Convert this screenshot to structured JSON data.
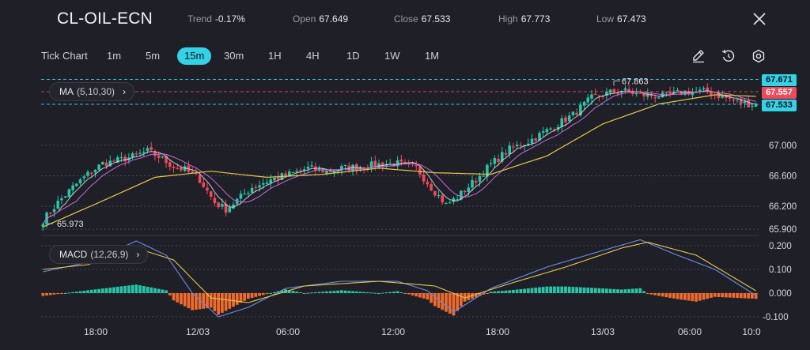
{
  "header": {
    "symbol": "CL-OIL-ECN",
    "trend_label": "Trend",
    "trend_value": "-0.17%",
    "open_label": "Open",
    "open_value": "67.649",
    "close_label": "Close",
    "close_value": "67.533",
    "high_label": "High",
    "high_value": "67.773",
    "low_label": "Low",
    "low_value": "67.473",
    "close_icon": "close-icon"
  },
  "timeframes": {
    "items": [
      "Tick Chart",
      "1m",
      "5m",
      "15m",
      "30m",
      "1H",
      "4H",
      "1D",
      "1W",
      "1M"
    ],
    "active": "15m"
  },
  "tools": [
    "pencil-icon",
    "reset-icon",
    "settings-icon"
  ],
  "indicators": {
    "ma_name": "MA",
    "ma_params": "(5,10,30)",
    "macd_name": "MACD",
    "macd_params": "(12,26,9)"
  },
  "price_tags": {
    "tag1": "67.671",
    "tag2": "67.557",
    "tag3": "67.533"
  },
  "annotations": {
    "high_marker": "67.863",
    "low_marker": "65.973"
  },
  "colors": {
    "background": "#1f1f27",
    "up": "#26c6a6",
    "down": "#ef4a5c",
    "accent": "#33d2e6",
    "ma_fast": "#e0e0e8",
    "ma_mid": "#c56bd8",
    "ma_slow": "#e6c84a",
    "macd_line": "#6a8de8",
    "signal_line": "#e6c84a",
    "hist_pos": "#26c6a6",
    "hist_neg": "#f06a2c"
  },
  "chart_data": [
    {
      "type": "candlestick",
      "y_ticks": [
        "67.000",
        "66.600",
        "66.200",
        "65.900"
      ],
      "x_ticks": [
        "18:00",
        "12/03",
        "06:00",
        "12:00",
        "18:00",
        "13/03",
        "06:00",
        "10:0"
      ],
      "ylim": [
        65.85,
        67.95
      ],
      "close_path": [
        {
          "t": 0,
          "v": 66.02
        },
        {
          "t": 4,
          "v": 66.25
        },
        {
          "t": 8,
          "v": 66.45
        },
        {
          "t": 12,
          "v": 66.62
        },
        {
          "t": 16,
          "v": 66.76
        },
        {
          "t": 20,
          "v": 66.8
        },
        {
          "t": 24,
          "v": 66.85
        },
        {
          "t": 28,
          "v": 66.92
        },
        {
          "t": 31,
          "v": 66.85
        },
        {
          "t": 35,
          "v": 66.72
        },
        {
          "t": 38,
          "v": 66.68
        },
        {
          "t": 42,
          "v": 66.55
        },
        {
          "t": 46,
          "v": 66.25
        },
        {
          "t": 49,
          "v": 66.16
        },
        {
          "t": 52,
          "v": 66.28
        },
        {
          "t": 56,
          "v": 66.45
        },
        {
          "t": 61,
          "v": 66.55
        },
        {
          "t": 66,
          "v": 66.62
        },
        {
          "t": 71,
          "v": 66.7
        },
        {
          "t": 76,
          "v": 66.66
        },
        {
          "t": 80,
          "v": 66.7
        },
        {
          "t": 85,
          "v": 66.72
        },
        {
          "t": 90,
          "v": 66.75
        },
        {
          "t": 95,
          "v": 66.76
        },
        {
          "t": 100,
          "v": 66.7
        },
        {
          "t": 104,
          "v": 66.45
        },
        {
          "t": 108,
          "v": 66.22
        },
        {
          "t": 111,
          "v": 66.32
        },
        {
          "t": 116,
          "v": 66.55
        },
        {
          "t": 120,
          "v": 66.75
        },
        {
          "t": 125,
          "v": 66.95
        },
        {
          "t": 130,
          "v": 67.05
        },
        {
          "t": 136,
          "v": 67.22
        },
        {
          "t": 142,
          "v": 67.4
        },
        {
          "t": 147,
          "v": 67.62
        },
        {
          "t": 151,
          "v": 67.68
        },
        {
          "t": 155,
          "v": 67.72
        },
        {
          "t": 160,
          "v": 67.66
        },
        {
          "t": 166,
          "v": 67.64
        },
        {
          "t": 172,
          "v": 67.7
        },
        {
          "t": 178,
          "v": 67.7
        },
        {
          "t": 183,
          "v": 67.62
        },
        {
          "t": 187,
          "v": 67.56
        },
        {
          "t": 191,
          "v": 67.53
        }
      ],
      "ma_slow_path": [
        {
          "t": 0,
          "v": 65.93
        },
        {
          "t": 15,
          "v": 66.25
        },
        {
          "t": 30,
          "v": 66.58
        },
        {
          "t": 45,
          "v": 66.66
        },
        {
          "t": 60,
          "v": 66.58
        },
        {
          "t": 75,
          "v": 66.62
        },
        {
          "t": 90,
          "v": 66.7
        },
        {
          "t": 105,
          "v": 66.64
        },
        {
          "t": 120,
          "v": 66.62
        },
        {
          "t": 135,
          "v": 66.86
        },
        {
          "t": 150,
          "v": 67.28
        },
        {
          "t": 165,
          "v": 67.54
        },
        {
          "t": 180,
          "v": 67.66
        },
        {
          "t": 191,
          "v": 67.64
        }
      ],
      "high_marker_value": 67.863,
      "low_marker_value": 65.973
    },
    {
      "type": "macd",
      "y_ticks": [
        "0.200",
        "0.100",
        "0.000",
        "-0.100"
      ],
      "ylim": [
        -0.13,
        0.23
      ],
      "macd_path": [
        {
          "t": 0,
          "v": 0.09
        },
        {
          "t": 12,
          "v": 0.13
        },
        {
          "t": 25,
          "v": 0.22
        },
        {
          "t": 33,
          "v": 0.16
        },
        {
          "t": 40,
          "v": 0.0
        },
        {
          "t": 47,
          "v": -0.1
        },
        {
          "t": 55,
          "v": -0.06
        },
        {
          "t": 65,
          "v": 0.02
        },
        {
          "t": 80,
          "v": 0.05
        },
        {
          "t": 95,
          "v": 0.05
        },
        {
          "t": 103,
          "v": 0.01
        },
        {
          "t": 110,
          "v": -0.08
        },
        {
          "t": 120,
          "v": 0.02
        },
        {
          "t": 135,
          "v": 0.11
        },
        {
          "t": 150,
          "v": 0.18
        },
        {
          "t": 160,
          "v": 0.225
        },
        {
          "t": 170,
          "v": 0.16
        },
        {
          "t": 180,
          "v": 0.1
        },
        {
          "t": 191,
          "v": -0.01
        }
      ],
      "signal_path": [
        {
          "t": 0,
          "v": 0.1
        },
        {
          "t": 12,
          "v": 0.12
        },
        {
          "t": 25,
          "v": 0.19
        },
        {
          "t": 35,
          "v": 0.14
        },
        {
          "t": 45,
          "v": -0.02
        },
        {
          "t": 55,
          "v": -0.04
        },
        {
          "t": 70,
          "v": 0.03
        },
        {
          "t": 90,
          "v": 0.05
        },
        {
          "t": 105,
          "v": 0.03
        },
        {
          "t": 113,
          "v": -0.02
        },
        {
          "t": 125,
          "v": 0.04
        },
        {
          "t": 140,
          "v": 0.11
        },
        {
          "t": 155,
          "v": 0.19
        },
        {
          "t": 162,
          "v": 0.215
        },
        {
          "t": 175,
          "v": 0.16
        },
        {
          "t": 191,
          "v": 0.01
        }
      ]
    }
  ]
}
